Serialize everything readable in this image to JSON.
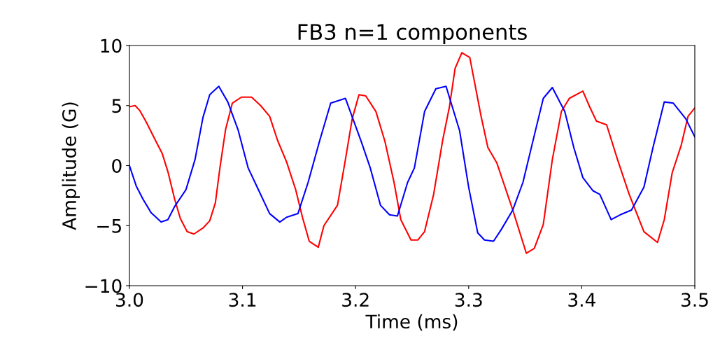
{
  "chart_data": {
    "type": "line",
    "title": "FB3 n=1 components",
    "xlabel": "Time (ms)",
    "ylabel": "Amplitude (G)",
    "xlim": [
      3.0,
      3.5
    ],
    "ylim": [
      -10,
      10
    ],
    "xticks": [
      {
        "value": 3.0,
        "label": "3.0"
      },
      3.1,
      3.2,
      3.3,
      3.4,
      {
        "value": 3.5,
        "label": "3.5"
      }
    ],
    "yticks": [
      {
        "value": -10,
        "label": "−10"
      },
      {
        "value": -5,
        "label": "−5"
      },
      0,
      5,
      10
    ],
    "grid": false,
    "legend": false,
    "marker": "none",
    "line_style": "solid",
    "series": [
      {
        "color": "#ff0000",
        "x": [
          3.0,
          3.005,
          3.009,
          3.015,
          3.023,
          3.029,
          3.034,
          3.04,
          3.045,
          3.051,
          3.057,
          3.065,
          3.071,
          3.076,
          3.08,
          3.085,
          3.091,
          3.099,
          3.108,
          3.116,
          3.124,
          3.131,
          3.139,
          3.147,
          3.153,
          3.159,
          3.167,
          3.172,
          3.184,
          3.191,
          3.197,
          3.203,
          3.209,
          3.218,
          3.226,
          3.234,
          3.24,
          3.249,
          3.255,
          3.261,
          3.269,
          3.277,
          3.283,
          3.288,
          3.294,
          3.301,
          3.311,
          3.317,
          3.325,
          3.339,
          3.351,
          3.358,
          3.366,
          3.374,
          3.382,
          3.389,
          3.401,
          3.407,
          3.413,
          3.422,
          3.432,
          3.442,
          3.455,
          3.467,
          3.473,
          3.48,
          3.488,
          3.494,
          3.5
        ],
        "values": [
          4.9,
          5.0,
          4.6,
          3.6,
          2.1,
          1.0,
          -0.5,
          -2.8,
          -4.4,
          -5.5,
          -5.7,
          -5.2,
          -4.6,
          -3.1,
          -0.2,
          3.0,
          5.2,
          5.7,
          5.7,
          5.0,
          4.1,
          2.1,
          0.3,
          -2.0,
          -4.3,
          -6.3,
          -6.8,
          -5.0,
          -3.3,
          0.5,
          3.9,
          5.9,
          5.8,
          4.5,
          2.0,
          -1.4,
          -4.5,
          -6.2,
          -6.2,
          -5.5,
          -2.4,
          2.1,
          4.9,
          8.1,
          9.4,
          9.0,
          4.1,
          1.5,
          0.2,
          -3.7,
          -7.3,
          -6.9,
          -4.9,
          0.5,
          4.5,
          5.6,
          6.2,
          4.9,
          3.7,
          3.4,
          0.4,
          -2.4,
          -5.5,
          -6.4,
          -4.5,
          -0.6,
          1.7,
          4.1,
          4.8
        ]
      },
      {
        "color": "#0000ff",
        "x": [
          3.0,
          3.006,
          3.012,
          3.019,
          3.028,
          3.034,
          3.04,
          3.05,
          3.058,
          3.065,
          3.071,
          3.079,
          3.087,
          3.096,
          3.105,
          3.114,
          3.124,
          3.133,
          3.139,
          3.149,
          3.158,
          3.168,
          3.178,
          3.191,
          3.205,
          3.213,
          3.222,
          3.23,
          3.237,
          3.246,
          3.252,
          3.261,
          3.271,
          3.28,
          3.292,
          3.3,
          3.308,
          3.314,
          3.322,
          3.329,
          3.339,
          3.348,
          3.358,
          3.366,
          3.374,
          3.385,
          3.393,
          3.401,
          3.41,
          3.416,
          3.426,
          3.434,
          3.444,
          3.455,
          3.463,
          3.473,
          3.481,
          3.492,
          3.5
        ],
        "values": [
          0,
          -1.7,
          -2.8,
          -3.9,
          -4.7,
          -4.5,
          -3.4,
          -2.0,
          0.5,
          4.0,
          5.9,
          6.6,
          5.3,
          3.0,
          -0.2,
          -2.0,
          -4.0,
          -4.7,
          -4.3,
          -4.0,
          -1.4,
          2.0,
          5.2,
          5.6,
          2.0,
          -0.2,
          -3.3,
          -4.1,
          -4.2,
          -1.4,
          -0.2,
          4.5,
          6.4,
          6.6,
          2.9,
          -1.8,
          -5.6,
          -6.2,
          -6.3,
          -5.3,
          -3.7,
          -1.4,
          2.5,
          5.6,
          6.5,
          4.5,
          1.5,
          -1.0,
          -2.1,
          -2.4,
          -4.5,
          -4.1,
          -3.7,
          -1.8,
          1.5,
          5.3,
          5.2,
          3.9,
          2.4
        ]
      }
    ]
  }
}
